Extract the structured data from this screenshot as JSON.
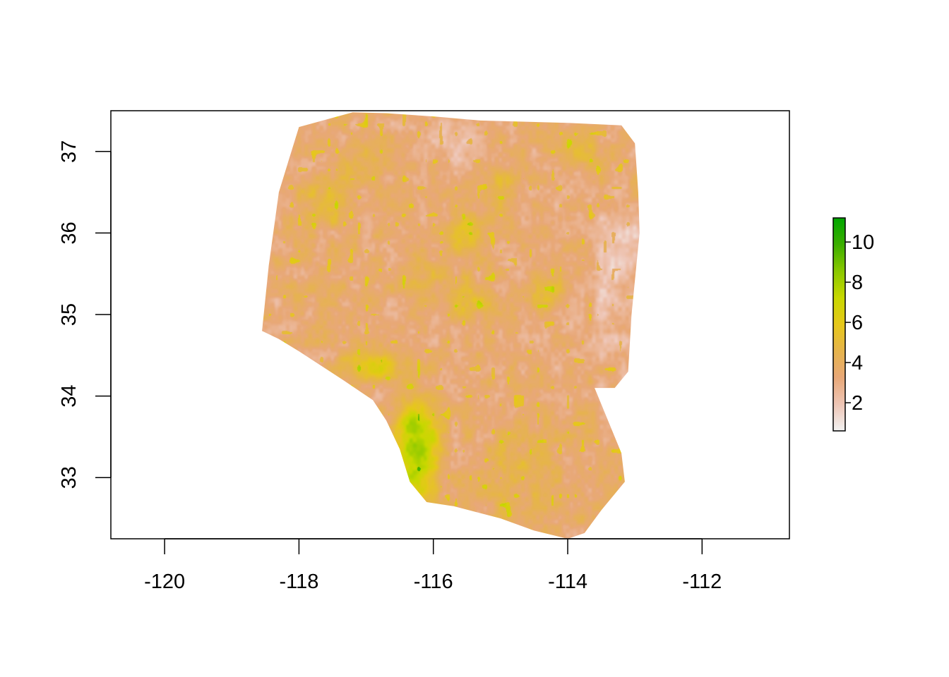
{
  "chart_data": {
    "type": "heatmap",
    "title": "",
    "xlabel": "",
    "ylabel": "",
    "xlim": [
      -120.8,
      -110.7
    ],
    "ylim": [
      32.25,
      37.5
    ],
    "x_ticks": [
      {
        "value": -120,
        "label": "-120"
      },
      {
        "value": -118,
        "label": "-118"
      },
      {
        "value": -116,
        "label": "-116"
      },
      {
        "value": -114,
        "label": "-114"
      },
      {
        "value": -112,
        "label": "-112"
      }
    ],
    "y_ticks": [
      {
        "value": 33,
        "label": "33"
      },
      {
        "value": 34,
        "label": "34"
      },
      {
        "value": 35,
        "label": "35"
      },
      {
        "value": 36,
        "label": "36"
      },
      {
        "value": 37,
        "label": "37"
      }
    ],
    "legend": {
      "placement": "right",
      "min": 0.6,
      "max": 11.2,
      "ticks": [
        {
          "value": 2,
          "label": "2"
        },
        {
          "value": 4,
          "label": "4"
        },
        {
          "value": 6,
          "label": "6"
        },
        {
          "value": 8,
          "label": "8"
        },
        {
          "value": 10,
          "label": "10"
        }
      ],
      "colors": [
        "#f2f2f2",
        "#eec5b5",
        "#e8a878",
        "#e6b44c",
        "#e6c81a",
        "#c8d800",
        "#8ac800",
        "#3cae00",
        "#00a600"
      ]
    },
    "raster_outline_lonlat": [
      [
        -117.2,
        37.48
      ],
      [
        -116.7,
        37.47
      ],
      [
        -116.0,
        37.43
      ],
      [
        -115.3,
        37.38
      ],
      [
        -114.0,
        37.35
      ],
      [
        -113.2,
        37.32
      ],
      [
        -113.0,
        37.1
      ],
      [
        -112.95,
        36.5
      ],
      [
        -112.93,
        36.0
      ],
      [
        -113.05,
        35.0
      ],
      [
        -113.1,
        34.3
      ],
      [
        -113.3,
        34.1
      ],
      [
        -113.6,
        34.1
      ],
      [
        -113.2,
        33.3
      ],
      [
        -113.15,
        32.95
      ],
      [
        -113.5,
        32.6
      ],
      [
        -113.75,
        32.32
      ],
      [
        -114.0,
        32.25
      ],
      [
        -114.5,
        32.35
      ],
      [
        -115.0,
        32.5
      ],
      [
        -115.7,
        32.65
      ],
      [
        -116.1,
        32.7
      ],
      [
        -116.35,
        32.95
      ],
      [
        -116.5,
        33.35
      ],
      [
        -116.7,
        33.7
      ],
      [
        -116.9,
        33.95
      ],
      [
        -117.35,
        34.2
      ],
      [
        -118.0,
        34.55
      ],
      [
        -118.3,
        34.7
      ],
      [
        -118.55,
        34.8
      ],
      [
        -118.45,
        35.6
      ],
      [
        -118.3,
        36.5
      ],
      [
        -118.15,
        36.9
      ],
      [
        -118.0,
        37.3
      ]
    ],
    "raster_features": [
      {
        "kind": "low-plateau",
        "center": [
          -113.2,
          35.85
        ],
        "radius": [
          0.45,
          0.5
        ],
        "value": 1.2
      },
      {
        "kind": "low-plateau",
        "center": [
          -115.7,
          37.1
        ],
        "radius": [
          0.6,
          0.35
        ],
        "value": 1.5
      },
      {
        "kind": "low-plateau",
        "center": [
          -113.35,
          35.0
        ],
        "radius": [
          0.4,
          0.8
        ],
        "value": 2.0
      },
      {
        "kind": "mountains",
        "center": [
          -116.25,
          33.35
        ],
        "radius": [
          0.35,
          0.6
        ],
        "value": 10.5
      },
      {
        "kind": "mountains",
        "center": [
          -116.9,
          34.35
        ],
        "radius": [
          0.45,
          0.2
        ],
        "value": 7.5
      },
      {
        "kind": "ridge",
        "center": [
          -115.5,
          35.95
        ],
        "radius": [
          0.3,
          0.25
        ],
        "value": 6.5
      },
      {
        "kind": "ridge",
        "center": [
          -115.5,
          35.2
        ],
        "radius": [
          0.35,
          0.25
        ],
        "value": 6.0
      },
      {
        "kind": "ridge",
        "center": [
          -117.6,
          36.4
        ],
        "radius": [
          0.35,
          0.3
        ],
        "value": 6.0
      },
      {
        "kind": "ridge",
        "center": [
          -114.3,
          35.3
        ],
        "radius": [
          0.3,
          0.25
        ],
        "value": 5.5
      },
      {
        "kind": "ridge",
        "center": [
          -115.0,
          36.55
        ],
        "radius": [
          0.3,
          0.3
        ],
        "value": 5.5
      },
      {
        "kind": "ridge",
        "center": [
          -113.8,
          37.05
        ],
        "radius": [
          0.35,
          0.2
        ],
        "value": 5.5
      },
      {
        "kind": "ridge",
        "center": [
          -116.2,
          35.5
        ],
        "radius": [
          0.3,
          0.25
        ],
        "value": 5.0
      },
      {
        "kind": "ridge",
        "center": [
          -117.1,
          36.9
        ],
        "radius": [
          0.35,
          0.25
        ],
        "value": 5.0
      },
      {
        "kind": "basin",
        "center": [
          -114.7,
          33.0
        ],
        "radius": [
          0.7,
          0.6
        ],
        "value": 4.8
      }
    ]
  }
}
